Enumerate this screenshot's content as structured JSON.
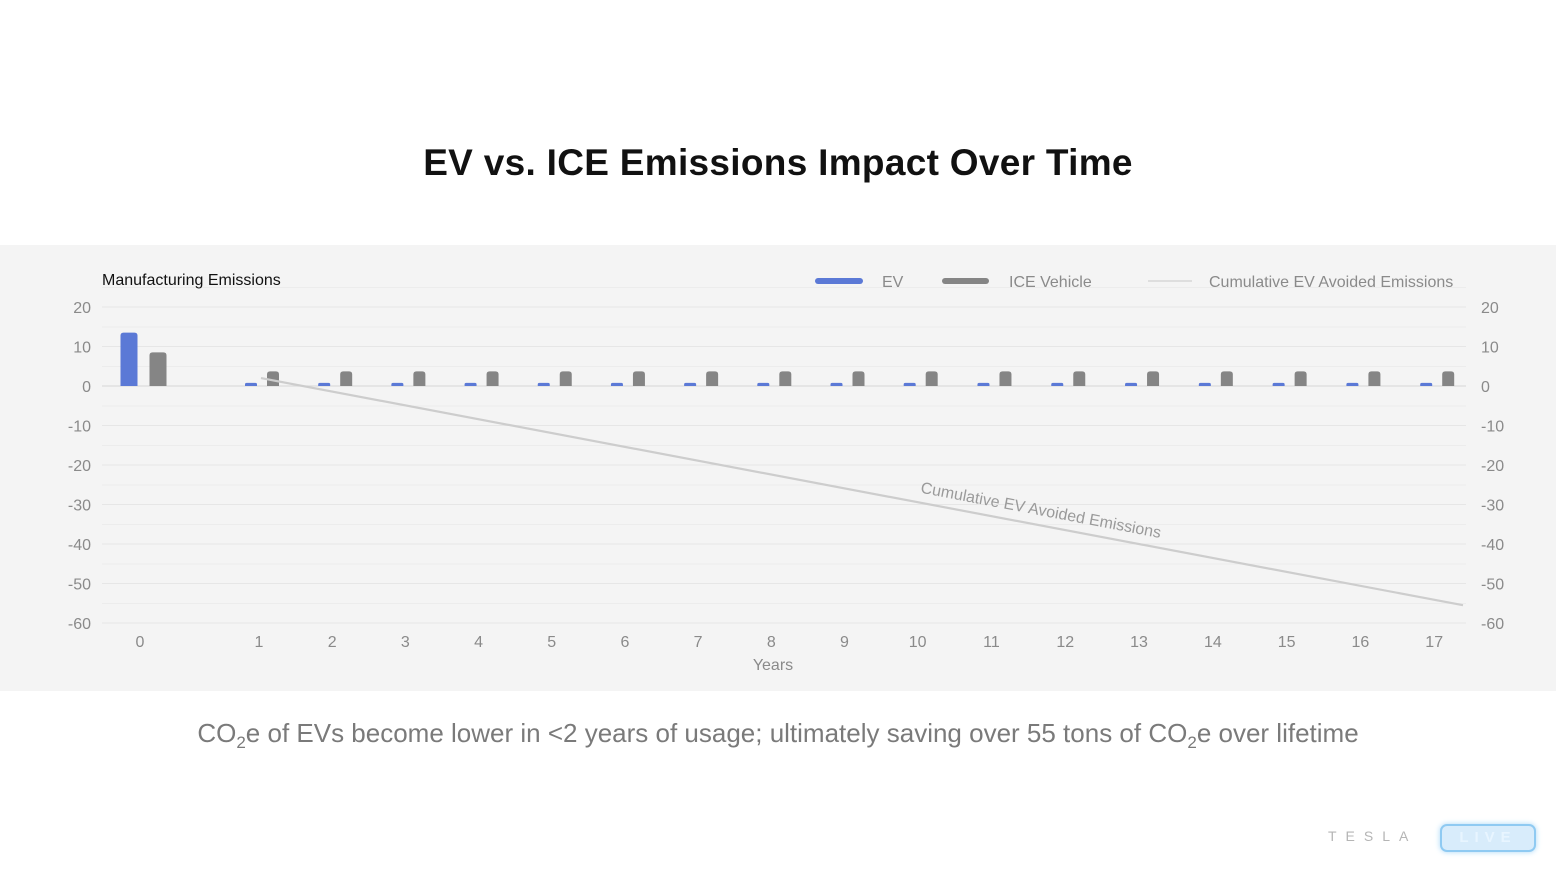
{
  "title": "EV vs. ICE Emissions Impact Over Time",
  "caption": {
    "part1": "CO",
    "sub1": "2",
    "part2": "e of EVs become lower in <2 years of usage; ultimately saving over 55 tons of CO",
    "sub2": "2",
    "part3": "e over lifetime"
  },
  "brand": {
    "wordmark": "TESLA",
    "badge": "LIVE"
  },
  "colors": {
    "ev": "#5b79d6",
    "ice": "#858585",
    "cumulative": "#cdcdcd",
    "panel_bg": "#f4f4f4",
    "grid": "#e6e6e6",
    "tick_text": "#8a8a8a"
  },
  "chart_data": {
    "type": "bar",
    "title": "",
    "xlabel": "Years",
    "ylabel": "Manufacturing Emissions",
    "ylim": [
      -60,
      20
    ],
    "y_ticks": [
      20,
      10,
      0,
      -10,
      -20,
      -30,
      -40,
      -50,
      -60
    ],
    "grid": true,
    "legend_position": "top-right",
    "dual_y_axis": true,
    "categories": [
      "0",
      "1",
      "2",
      "3",
      "4",
      "5",
      "6",
      "7",
      "8",
      "9",
      "10",
      "11",
      "12",
      "13",
      "14",
      "15",
      "16",
      "17"
    ],
    "series": [
      {
        "name": "EV",
        "type": "bar",
        "color": "#5b79d6",
        "values": [
          13.5,
          0.8,
          0.8,
          0.8,
          0.8,
          0.8,
          0.8,
          0.8,
          0.8,
          0.8,
          0.8,
          0.8,
          0.8,
          0.8,
          0.8,
          0.8,
          0.8,
          0.8
        ]
      },
      {
        "name": "ICE Vehicle",
        "type": "bar",
        "color": "#858585",
        "values": [
          8.5,
          3.7,
          3.7,
          3.7,
          3.7,
          3.7,
          3.7,
          3.7,
          3.7,
          3.7,
          3.7,
          3.7,
          3.7,
          3.7,
          3.7,
          3.7,
          3.7,
          3.7
        ]
      },
      {
        "name": "Cumulative EV Avoided Emissions",
        "type": "line",
        "color": "#cdcdcd",
        "x": [
          1,
          17
        ],
        "values": [
          2,
          -55.5
        ]
      }
    ],
    "annotation": {
      "text": "Cumulative EV Avoided  Emissions",
      "on_series": "Cumulative EV Avoided Emissions"
    }
  }
}
